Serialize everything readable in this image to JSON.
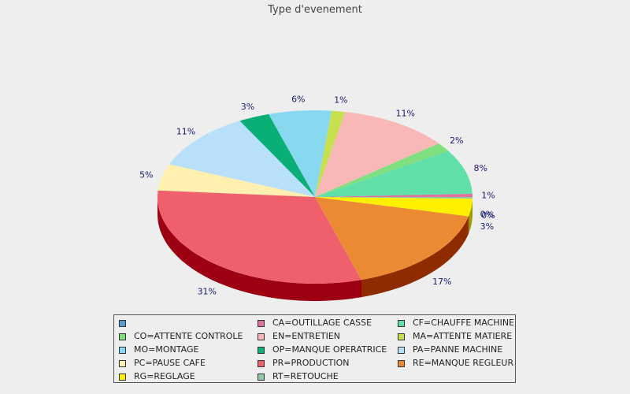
{
  "chart_data": {
    "type": "pie",
    "title": "Type d'evenement",
    "three_d": true,
    "legend_position": "bottom",
    "slices": [
      {
        "code": "",
        "label": "",
        "percent_label": "",
        "value": 0,
        "color": "#5b9bd5",
        "side_color": "#3a6f9c"
      },
      {
        "code": "CA",
        "label": "CA=OUTILLAGE CASSE",
        "percent_label": "1%",
        "value": 0.6,
        "color": "#e0709e",
        "side_color": "#9c3f66"
      },
      {
        "code": "CF",
        "label": "CF=CHAUFFE MACHINE",
        "percent_label": "8%",
        "value": 8.4,
        "color": "#60e0a8",
        "side_color": "#2e9c6c"
      },
      {
        "code": "CO",
        "label": "CO=ATTENTE CONTROLE",
        "percent_label": "2%",
        "value": 1.7,
        "color": "#80e080",
        "side_color": "#4c9c4c"
      },
      {
        "code": "EN",
        "label": "EN=ENTRETIEN",
        "percent_label": "11%",
        "value": 11.4,
        "color": "#f8b8b8",
        "side_color": "#b07878"
      },
      {
        "code": "MA",
        "label": "MA=ATTENTE MATIERE",
        "percent_label": "1%",
        "value": 1.4,
        "color": "#c8e050",
        "side_color": "#8ca030"
      },
      {
        "code": "MO",
        "label": "MO=MONTAGE",
        "percent_label": "6%",
        "value": 6.5,
        "color": "#88d8f0",
        "side_color": "#5098b0"
      },
      {
        "code": "OP",
        "label": "OP=MANQUE OPERATRICE",
        "percent_label": "3%",
        "value": 3.2,
        "color": "#0aaf78",
        "side_color": "#06704c"
      },
      {
        "code": "PA",
        "label": "PA=PANNE MACHINE",
        "percent_label": "11%",
        "value": 11.0,
        "color": "#b8e0f8",
        "side_color": "#7aa0b8"
      },
      {
        "code": "PC",
        "label": "PC=PAUSE CAFE",
        "percent_label": "5%",
        "value": 5.0,
        "color": "#fff0b0",
        "side_color": "#b8a870"
      },
      {
        "code": "PR",
        "label": "PR=PRODUCTION",
        "percent_label": "31%",
        "value": 31.2,
        "color": "#f0606c",
        "side_color": "#9c0012"
      },
      {
        "code": "RE",
        "label": "RE=MANQUE REGLEUR",
        "percent_label": "17%",
        "value": 16.8,
        "color": "#ec8a34",
        "side_color": "#8e2c00"
      },
      {
        "code": "RG",
        "label": "RG=REGLAGE",
        "percent_label": "3%",
        "value": 3.3,
        "color": "#fff000",
        "side_color": "#a09800"
      },
      {
        "code": "RT",
        "label": "RT=RETOUCHE",
        "percent_label": "0%",
        "value": 0.3,
        "color": "#90c8a8",
        "side_color": "#5a8a6e"
      }
    ],
    "extra_percent_labels": [
      "0%"
    ]
  }
}
